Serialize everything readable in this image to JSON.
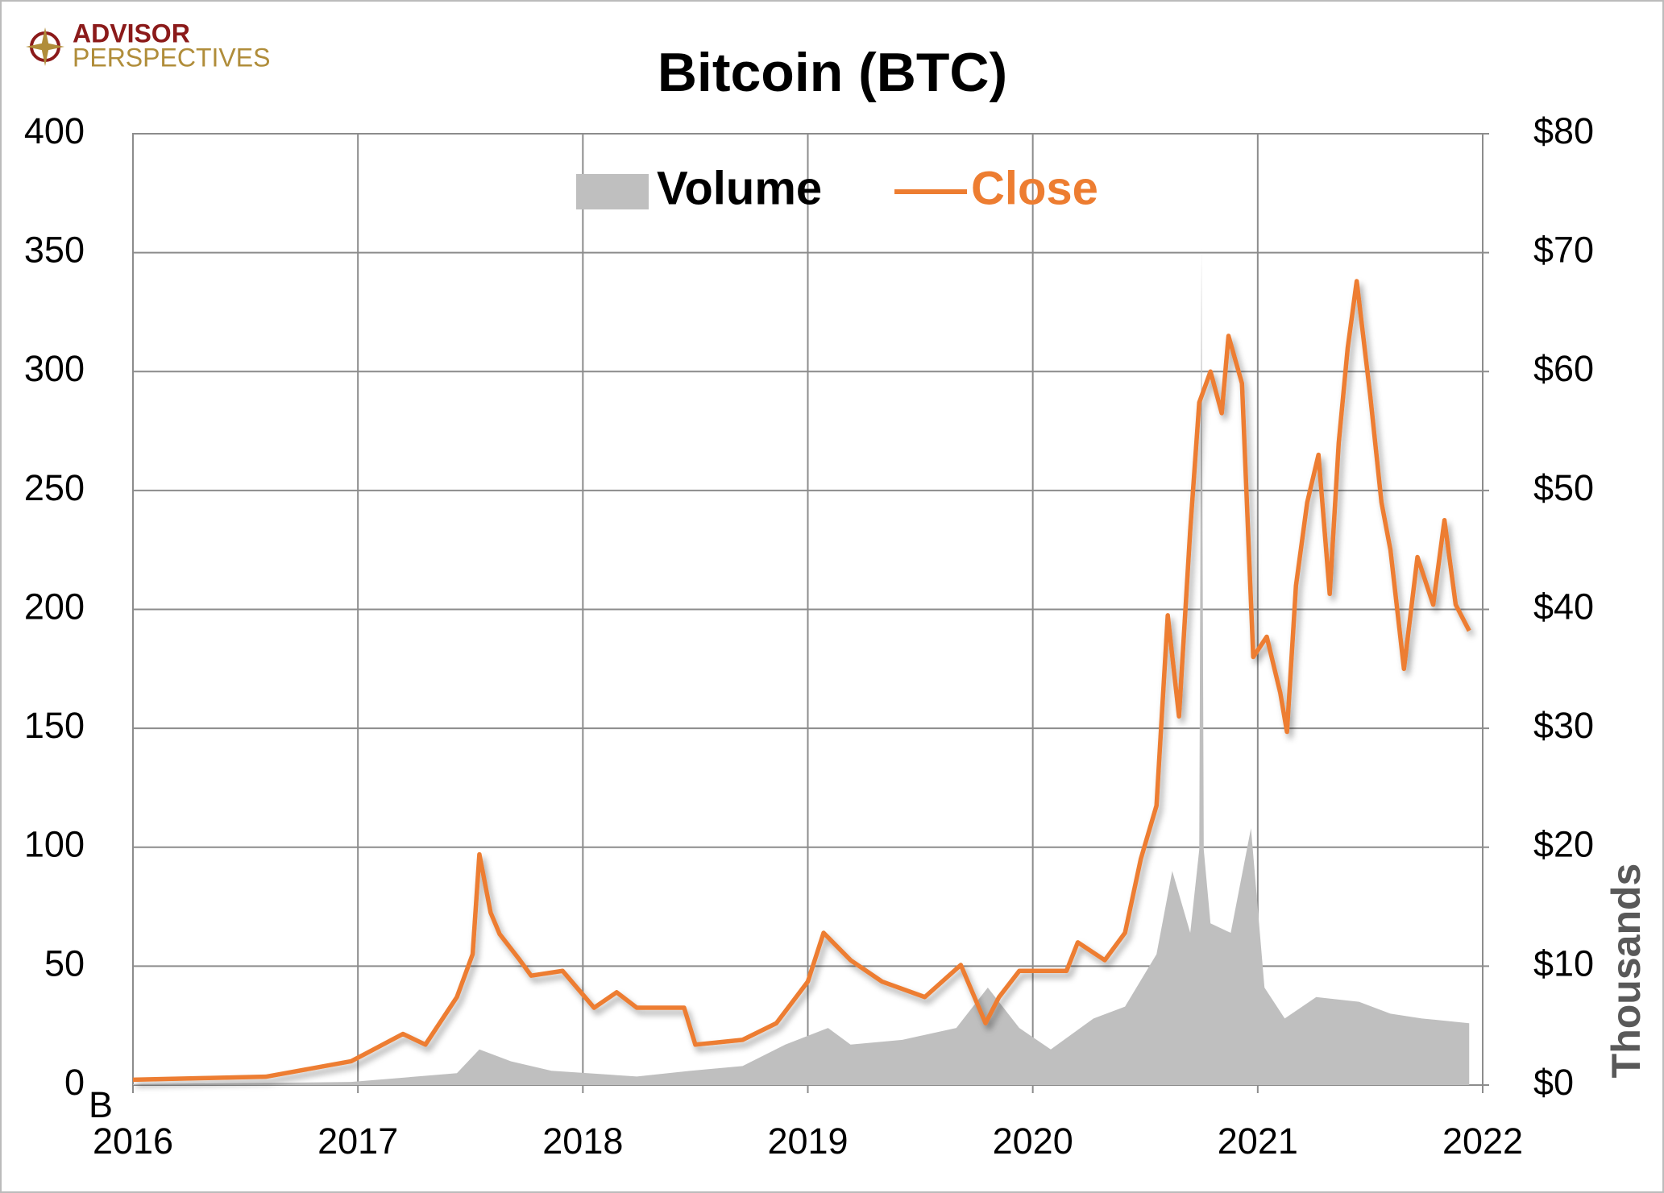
{
  "logo": [
    "ADVISOR",
    "PERSPECTIVES"
  ],
  "chart_data": {
    "type": "area-line",
    "title": "Bitcoin (BTC)",
    "y_axis_label": "B",
    "y2_axis_label": "Thousands",
    "xlim": [
      2016,
      2022
    ],
    "xticks": [
      2016,
      2017,
      2018,
      2019,
      2020,
      2021,
      2022
    ],
    "ylim": [
      0,
      400
    ],
    "yticks": [
      0,
      50,
      100,
      150,
      200,
      250,
      300,
      350,
      400
    ],
    "y2lim": [
      0,
      80
    ],
    "y2ticks": [
      {
        "value": 0,
        "label": "$0"
      },
      {
        "value": 10,
        "label": "$10"
      },
      {
        "value": 20,
        "label": "$20"
      },
      {
        "value": 30,
        "label": "$30"
      },
      {
        "value": 40,
        "label": "$40"
      },
      {
        "value": 50,
        "label": "$50"
      },
      {
        "value": 60,
        "label": "$60"
      },
      {
        "value": 70,
        "label": "$70"
      },
      {
        "value": 80,
        "label": "$80"
      }
    ],
    "grid": true,
    "series": [
      {
        "name": "Volume",
        "color": "#bfbfbf",
        "kind": "area",
        "axis": "y",
        "x": [
          2016.0,
          2016.97,
          2017.44,
          2017.54,
          2017.68,
          2017.86,
          2018.24,
          2018.48,
          2018.71,
          2018.9,
          2019.09,
          2019.19,
          2019.42,
          2019.66,
          2019.8,
          2019.94,
          2020.08,
          2020.27,
          2020.41,
          2020.55,
          2020.62,
          2020.7,
          2020.74,
          2020.75,
          2020.76,
          2020.79,
          2020.88,
          2020.97,
          2021.03,
          2021.12,
          2021.26,
          2021.45,
          2021.59,
          2021.73,
          2021.94
        ],
        "values": [
          0.4,
          1.3,
          5,
          15,
          10,
          6,
          3.6,
          6,
          8,
          17,
          24,
          17,
          19,
          24,
          41,
          24,
          15,
          28,
          33,
          55,
          90,
          64,
          99,
          352,
          99,
          68,
          64,
          108,
          41,
          28,
          37,
          35,
          30,
          28,
          26
        ]
      },
      {
        "name": "Close",
        "color": "#ed7d31",
        "kind": "line",
        "axis": "y2",
        "x": [
          2016.0,
          2016.59,
          2016.97,
          2017.04,
          2017.2,
          2017.3,
          2017.44,
          2017.51,
          2017.54,
          2017.59,
          2017.63,
          2017.72,
          2017.77,
          2017.91,
          2018.05,
          2018.15,
          2018.24,
          2018.45,
          2018.5,
          2018.71,
          2018.86,
          2019.0,
          2019.07,
          2019.19,
          2019.33,
          2019.52,
          2019.68,
          2019.79,
          2019.85,
          2019.94,
          2020.15,
          2020.2,
          2020.32,
          2020.41,
          2020.48,
          2020.55,
          2020.6,
          2020.65,
          2020.7,
          2020.74,
          2020.79,
          2020.84,
          2020.87,
          2020.93,
          2020.98,
          2021.04,
          2021.1,
          2021.13,
          2021.17,
          2021.22,
          2021.27,
          2021.32,
          2021.36,
          2021.4,
          2021.44,
          2021.5,
          2021.55,
          2021.59,
          2021.65,
          2021.71,
          2021.78,
          2021.83,
          2021.88,
          2021.94
        ],
        "values": [
          0.45,
          0.7,
          2.0,
          2.7,
          4.3,
          3.4,
          7.4,
          11,
          19.4,
          14.5,
          12.7,
          10.5,
          9.2,
          9.6,
          6.5,
          7.8,
          6.5,
          6.5,
          3.4,
          3.8,
          5.2,
          8.7,
          12.8,
          10.5,
          8.7,
          7.4,
          10.1,
          5.2,
          7.4,
          9.6,
          9.6,
          12.0,
          10.5,
          12.8,
          19,
          23.5,
          39.5,
          31,
          46.7,
          57.4,
          60,
          56.5,
          63,
          59,
          36,
          37.7,
          33,
          29.7,
          42,
          49,
          53,
          41.3,
          54,
          62,
          67.6,
          58,
          49,
          45,
          35,
          44.4,
          40.4,
          47.5,
          40.4,
          38.2
        ]
      }
    ]
  }
}
